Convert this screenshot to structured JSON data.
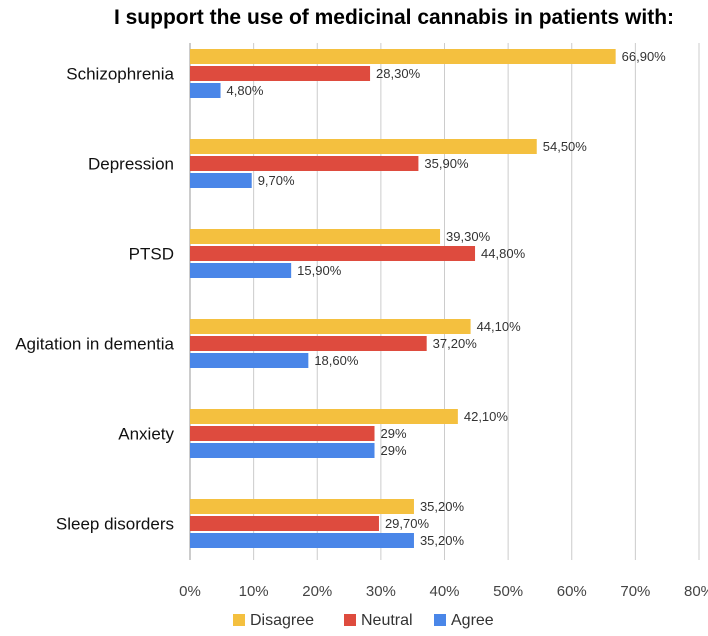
{
  "chart_data": {
    "type": "bar",
    "orientation": "horizontal",
    "title": "I support the use of medicinal cannabis in patients with:",
    "categories": [
      "Schizophrenia",
      "Depression",
      "PTSD",
      "Agitation in dementia",
      "Anxiety",
      "Sleep disorders"
    ],
    "series": [
      {
        "name": "Disagree",
        "color": "#F4C03F",
        "values": [
          66.9,
          54.5,
          39.3,
          44.1,
          42.1,
          35.2
        ],
        "labels": [
          "66,90%",
          "54,50%",
          "39,30%",
          "44,10%",
          "42,10%",
          "35,20%"
        ]
      },
      {
        "name": "Neutral",
        "color": "#DE4B3E",
        "values": [
          28.3,
          35.9,
          44.8,
          37.2,
          29,
          29.7
        ],
        "labels": [
          "28,30%",
          "35,90%",
          "44,80%",
          "37,20%",
          "29%",
          "29,70%"
        ]
      },
      {
        "name": "Agree",
        "color": "#4A86E8",
        "values": [
          4.8,
          9.7,
          15.9,
          18.6,
          29,
          35.2
        ],
        "labels": [
          "4,80%",
          "9,70%",
          "15,90%",
          "18,60%",
          "29%",
          "35,20%"
        ]
      }
    ],
    "xlim": [
      0,
      80
    ],
    "xticks": [
      0,
      10,
      20,
      30,
      40,
      50,
      60,
      70,
      80
    ],
    "xtick_labels": [
      "0%",
      "10%",
      "20%",
      "30%",
      "40%",
      "50%",
      "60%",
      "70%",
      "80%"
    ],
    "xlabel": "",
    "ylabel": "",
    "grid": "vertical",
    "legend_position": "bottom"
  }
}
